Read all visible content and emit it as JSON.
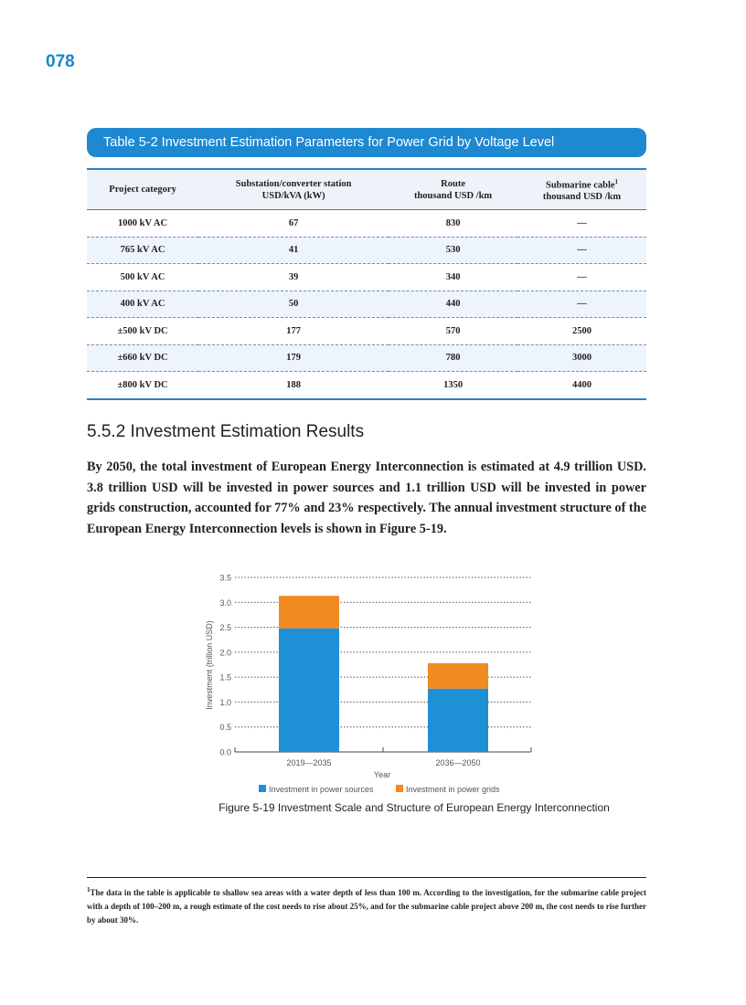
{
  "page_number": "078",
  "table": {
    "title": "Table 5-2   Investment Estimation Parameters for Power Grid by Voltage Level",
    "headers": [
      [
        "Project category",
        ""
      ],
      [
        "Substation/converter station",
        "USD/kVA (kW)"
      ],
      [
        "Route",
        "thousand USD /km"
      ],
      [
        "Submarine cable",
        "thousand USD /km"
      ]
    ],
    "footnote_mark": "1",
    "rows": [
      [
        "1000 kV AC",
        "67",
        "830",
        "—"
      ],
      [
        "765 kV AC",
        "41",
        "530",
        "—"
      ],
      [
        "500 kV AC",
        "39",
        "340",
        "—"
      ],
      [
        "400 kV AC",
        "50",
        "440",
        "—"
      ],
      [
        "±500 kV DC",
        "177",
        "570",
        "2500"
      ],
      [
        "±660 kV DC",
        "179",
        "780",
        "3000"
      ],
      [
        "±800 kV DC",
        "188",
        "1350",
        "4400"
      ]
    ]
  },
  "section": {
    "heading": "5.5.2   Investment Estimation Results",
    "paragraph": "By 2050, the total investment of European Energy Interconnection is estimated at 4.9 trillion USD. 3.8 trillion USD will be invested in power sources and 1.1 trillion USD will be invested in power grids construction, accounted for 77% and 23% respectively. The annual investment structure of the European Energy Interconnection levels is shown in Figure 5-19."
  },
  "chart_data": {
    "type": "bar",
    "stacked": true,
    "categories": [
      "2019—2035",
      "2036—2050"
    ],
    "series": [
      {
        "name": "Investment in power sources",
        "values": [
          2.48,
          1.27
        ],
        "color": "#1f8fd6"
      },
      {
        "name": "Investment in power grids",
        "values": [
          0.65,
          0.51
        ],
        "color": "#f28a22"
      }
    ],
    "xlabel": "Year",
    "ylabel": "Investment (trillion USD)",
    "ylim": [
      0,
      3.5
    ],
    "yticks": [
      "0.0",
      "0.5",
      "1.0",
      "1.5",
      "2.0",
      "2.5",
      "3.0",
      "3.5"
    ],
    "grid": true,
    "legend": "bottom",
    "title": "Figure 5-19   Investment Scale and Structure of European Energy Interconnection"
  },
  "footnote": {
    "mark": "1",
    "text": "The data in the table is applicable to shallow sea areas with a water depth of less than 100 m. According to the investigation, for the submarine cable project with a depth of 100–200 m, a rough estimate of the cost needs to rise about 25%, and for the submarine cable project above 200 m, the cost needs to rise further by about 30%."
  }
}
